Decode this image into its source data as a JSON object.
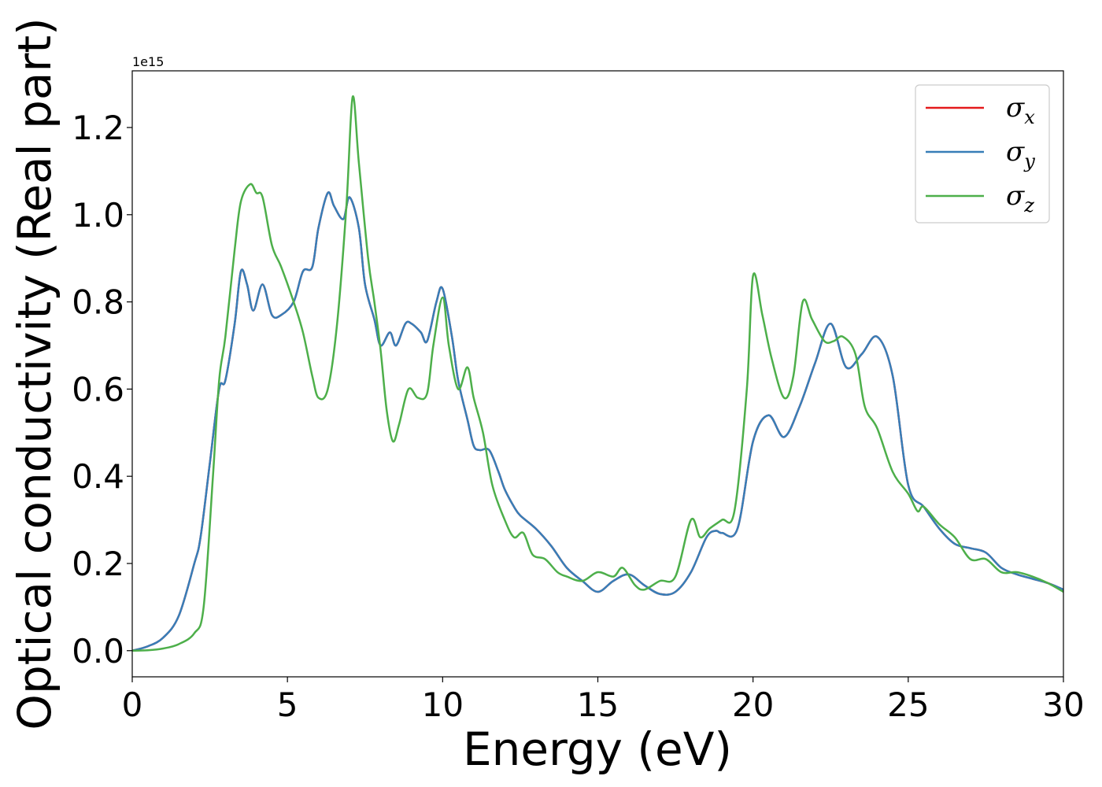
{
  "chart_data": {
    "type": "line",
    "xlabel": "Energy (eV)",
    "ylabel": "Optical conductivity (Real part)",
    "y_multiplier_label": "1e15",
    "xlim": [
      0,
      30
    ],
    "ylim": [
      -0.06,
      1.33
    ],
    "x_ticks": [
      0,
      5,
      10,
      15,
      20,
      25,
      30
    ],
    "x_tick_labels": [
      "0",
      "5",
      "10",
      "15",
      "20",
      "25",
      "30"
    ],
    "y_ticks": [
      0.0,
      0.2,
      0.4,
      0.6,
      0.8,
      1.0,
      1.2
    ],
    "y_tick_labels": [
      "0.0",
      "0.2",
      "0.4",
      "0.6",
      "0.8",
      "1.0",
      "1.2"
    ],
    "grid": false,
    "legend_position": "top-right",
    "series": [
      {
        "name": "σx",
        "legend_base": "σ",
        "legend_sub": "x",
        "color": "#e41a1c",
        "x": [
          0,
          0.5,
          1.0,
          1.5,
          2.0,
          2.2,
          2.5,
          2.8,
          3.0,
          3.3,
          3.5,
          3.7,
          3.9,
          4.2,
          4.5,
          4.8,
          5.2,
          5.5,
          5.8,
          6.0,
          6.3,
          6.5,
          6.8,
          7.0,
          7.3,
          7.5,
          7.8,
          8.0,
          8.3,
          8.5,
          8.8,
          9.0,
          9.3,
          9.5,
          9.8,
          10.0,
          10.3,
          10.5,
          10.8,
          11.0,
          11.2,
          11.5,
          11.8,
          12.0,
          12.3,
          12.5,
          13.0,
          13.5,
          14.0,
          14.5,
          15.0,
          15.5,
          16.0,
          16.5,
          17.0,
          17.5,
          18.0,
          18.5,
          18.8,
          19.0,
          19.5,
          20.0,
          20.5,
          21.0,
          21.5,
          22.0,
          22.5,
          23.0,
          23.5,
          24.0,
          24.5,
          25.0,
          25.5,
          26.0,
          26.5,
          27.0,
          27.5,
          28.0,
          28.5,
          29.0,
          29.5,
          30.0
        ],
        "y": [
          0.0,
          0.01,
          0.03,
          0.08,
          0.2,
          0.26,
          0.43,
          0.6,
          0.62,
          0.75,
          0.87,
          0.84,
          0.78,
          0.84,
          0.77,
          0.77,
          0.8,
          0.87,
          0.88,
          0.97,
          1.05,
          1.02,
          0.99,
          1.04,
          0.97,
          0.84,
          0.76,
          0.7,
          0.73,
          0.7,
          0.75,
          0.75,
          0.73,
          0.71,
          0.8,
          0.83,
          0.72,
          0.62,
          0.53,
          0.47,
          0.46,
          0.46,
          0.41,
          0.37,
          0.33,
          0.31,
          0.28,
          0.24,
          0.19,
          0.16,
          0.135,
          0.16,
          0.175,
          0.15,
          0.13,
          0.135,
          0.18,
          0.26,
          0.275,
          0.27,
          0.28,
          0.48,
          0.54,
          0.49,
          0.56,
          0.66,
          0.75,
          0.65,
          0.68,
          0.72,
          0.63,
          0.38,
          0.33,
          0.28,
          0.245,
          0.235,
          0.225,
          0.19,
          0.175,
          0.165,
          0.155,
          0.14
        ]
      },
      {
        "name": "σy",
        "legend_base": "σ",
        "legend_sub": "y",
        "color": "#377eb8",
        "x": [
          0,
          0.5,
          1.0,
          1.5,
          2.0,
          2.2,
          2.5,
          2.8,
          3.0,
          3.3,
          3.5,
          3.7,
          3.9,
          4.2,
          4.5,
          4.8,
          5.2,
          5.5,
          5.8,
          6.0,
          6.3,
          6.5,
          6.8,
          7.0,
          7.3,
          7.5,
          7.8,
          8.0,
          8.3,
          8.5,
          8.8,
          9.0,
          9.3,
          9.5,
          9.8,
          10.0,
          10.3,
          10.5,
          10.8,
          11.0,
          11.2,
          11.5,
          11.8,
          12.0,
          12.3,
          12.5,
          13.0,
          13.5,
          14.0,
          14.5,
          15.0,
          15.5,
          16.0,
          16.5,
          17.0,
          17.5,
          18.0,
          18.5,
          18.8,
          19.0,
          19.5,
          20.0,
          20.5,
          21.0,
          21.5,
          22.0,
          22.5,
          23.0,
          23.5,
          24.0,
          24.5,
          25.0,
          25.5,
          26.0,
          26.5,
          27.0,
          27.5,
          28.0,
          28.5,
          29.0,
          29.5,
          30.0
        ],
        "y": [
          0.0,
          0.01,
          0.03,
          0.08,
          0.2,
          0.26,
          0.43,
          0.6,
          0.62,
          0.75,
          0.87,
          0.84,
          0.78,
          0.84,
          0.77,
          0.77,
          0.8,
          0.87,
          0.88,
          0.97,
          1.05,
          1.02,
          0.99,
          1.04,
          0.97,
          0.84,
          0.76,
          0.7,
          0.73,
          0.7,
          0.75,
          0.75,
          0.73,
          0.71,
          0.8,
          0.83,
          0.72,
          0.62,
          0.53,
          0.47,
          0.46,
          0.46,
          0.41,
          0.37,
          0.33,
          0.31,
          0.28,
          0.24,
          0.19,
          0.16,
          0.135,
          0.16,
          0.175,
          0.15,
          0.13,
          0.135,
          0.18,
          0.26,
          0.275,
          0.27,
          0.28,
          0.48,
          0.54,
          0.49,
          0.56,
          0.66,
          0.75,
          0.65,
          0.68,
          0.72,
          0.63,
          0.38,
          0.33,
          0.28,
          0.245,
          0.235,
          0.225,
          0.19,
          0.175,
          0.165,
          0.155,
          0.14
        ]
      },
      {
        "name": "σz",
        "legend_base": "σ",
        "legend_sub": "z",
        "color": "#4daf4a",
        "x": [
          0,
          0.5,
          1.0,
          1.5,
          2.0,
          2.3,
          2.6,
          2.8,
          3.0,
          3.3,
          3.5,
          3.8,
          4.0,
          4.2,
          4.5,
          4.8,
          5.2,
          5.5,
          5.8,
          6.0,
          6.3,
          6.6,
          6.9,
          7.1,
          7.3,
          7.6,
          7.8,
          8.0,
          8.2,
          8.4,
          8.6,
          8.9,
          9.2,
          9.5,
          9.7,
          10.0,
          10.2,
          10.5,
          10.8,
          11.0,
          11.3,
          11.6,
          12.0,
          12.3,
          12.6,
          12.9,
          13.3,
          13.7,
          14.0,
          14.5,
          15.0,
          15.5,
          15.8,
          16.2,
          16.5,
          17.0,
          17.5,
          18.0,
          18.3,
          18.6,
          19.0,
          19.4,
          19.8,
          20.0,
          20.3,
          20.6,
          21.0,
          21.3,
          21.6,
          21.9,
          22.3,
          22.6,
          22.9,
          23.3,
          23.6,
          24.0,
          24.5,
          25.0,
          25.3,
          25.5,
          26.0,
          26.5,
          27.0,
          27.5,
          28.0,
          28.5,
          29.0,
          29.5,
          30.0
        ],
        "y": [
          0.0,
          0.001,
          0.005,
          0.015,
          0.04,
          0.1,
          0.4,
          0.62,
          0.72,
          0.92,
          1.03,
          1.07,
          1.05,
          1.04,
          0.93,
          0.88,
          0.8,
          0.73,
          0.63,
          0.58,
          0.6,
          0.75,
          1.02,
          1.27,
          1.12,
          0.9,
          0.8,
          0.69,
          0.55,
          0.48,
          0.52,
          0.6,
          0.58,
          0.59,
          0.7,
          0.81,
          0.7,
          0.6,
          0.65,
          0.58,
          0.5,
          0.38,
          0.3,
          0.26,
          0.27,
          0.22,
          0.21,
          0.18,
          0.17,
          0.16,
          0.18,
          0.17,
          0.19,
          0.15,
          0.14,
          0.16,
          0.17,
          0.3,
          0.26,
          0.28,
          0.3,
          0.32,
          0.6,
          0.86,
          0.77,
          0.67,
          0.58,
          0.63,
          0.8,
          0.76,
          0.71,
          0.71,
          0.72,
          0.68,
          0.56,
          0.51,
          0.41,
          0.36,
          0.32,
          0.33,
          0.29,
          0.26,
          0.21,
          0.21,
          0.18,
          0.18,
          0.17,
          0.155,
          0.135
        ]
      }
    ]
  }
}
